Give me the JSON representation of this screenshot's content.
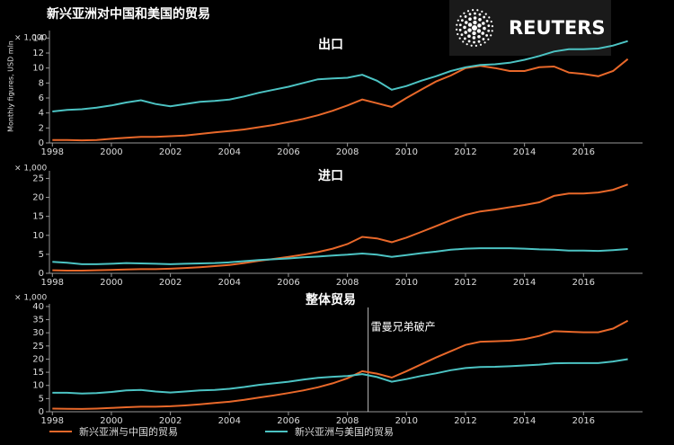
{
  "title": "新兴亚洲对中国和美国的贸易",
  "logo": "REUTERS",
  "chart_data": [
    {
      "type": "line",
      "title": "出口",
      "multiplier": "× 1,000",
      "ylabel": "Monthly figures, USD mln",
      "x": [
        1998,
        1998.5,
        1999,
        1999.5,
        2000,
        2000.5,
        2001,
        2001.5,
        2002,
        2002.5,
        2003,
        2003.5,
        2004,
        2004.5,
        2005,
        2005.5,
        2006,
        2006.5,
        2007,
        2007.5,
        2008,
        2008.5,
        2009,
        2009.5,
        2010,
        2010.5,
        2011,
        2011.5,
        2012,
        2012.5,
        2013,
        2013.5,
        2014,
        2014.5,
        2015,
        2015.5,
        2016,
        2016.5,
        2017,
        2017.5
      ],
      "xlim": [
        1997.9,
        2018
      ],
      "xticks": [
        1998,
        2000,
        2002,
        2004,
        2006,
        2008,
        2010,
        2012,
        2014,
        2016
      ],
      "ylim": [
        0,
        15
      ],
      "yticks": [
        0,
        2,
        4,
        6,
        8,
        10,
        12,
        14
      ],
      "series": [
        {
          "color": "#e8682a",
          "values": [
            0.4,
            0.4,
            0.35,
            0.4,
            0.55,
            0.7,
            0.8,
            0.8,
            0.9,
            1.0,
            1.2,
            1.4,
            1.6,
            1.8,
            2.1,
            2.4,
            2.8,
            3.2,
            3.7,
            4.3,
            5.0,
            5.8,
            5.3,
            4.8,
            6.0,
            7.1,
            8.2,
            9.0,
            10.0,
            10.3,
            10.0,
            9.6,
            9.6,
            10.1,
            10.2,
            9.4,
            9.2,
            8.9,
            9.6,
            11.2
          ]
        },
        {
          "color": "#4cc3c3",
          "values": [
            4.2,
            4.4,
            4.5,
            4.7,
            5.0,
            5.4,
            5.7,
            5.2,
            4.9,
            5.2,
            5.5,
            5.6,
            5.8,
            6.2,
            6.7,
            7.1,
            7.5,
            8.0,
            8.5,
            8.6,
            8.7,
            9.1,
            8.3,
            7.1,
            7.6,
            8.3,
            8.9,
            9.6,
            10.1,
            10.4,
            10.5,
            10.7,
            11.1,
            11.6,
            12.2,
            12.5,
            12.5,
            12.6,
            13.0,
            13.6
          ]
        }
      ]
    },
    {
      "type": "line",
      "title": "进口",
      "multiplier": "× 1,000",
      "x": [
        1998,
        1998.5,
        1999,
        1999.5,
        2000,
        2000.5,
        2001,
        2001.5,
        2002,
        2002.5,
        2003,
        2003.5,
        2004,
        2004.5,
        2005,
        2005.5,
        2006,
        2006.5,
        2007,
        2007.5,
        2008,
        2008.5,
        2009,
        2009.5,
        2010,
        2010.5,
        2011,
        2011.5,
        2012,
        2012.5,
        2013,
        2013.5,
        2014,
        2014.5,
        2015,
        2015.5,
        2016,
        2016.5,
        2017,
        2017.5
      ],
      "xlim": [
        1997.9,
        2018
      ],
      "xticks": [
        1998,
        2000,
        2002,
        2004,
        2006,
        2008,
        2010,
        2012,
        2014,
        2016
      ],
      "ylim": [
        0,
        27
      ],
      "yticks": [
        0,
        5,
        10,
        15,
        20,
        25
      ],
      "series": [
        {
          "color": "#e8682a",
          "values": [
            0.8,
            0.7,
            0.7,
            0.8,
            0.9,
            1.0,
            1.1,
            1.1,
            1.2,
            1.4,
            1.6,
            1.9,
            2.2,
            2.7,
            3.3,
            3.8,
            4.3,
            4.9,
            5.6,
            6.5,
            7.7,
            9.6,
            9.2,
            8.2,
            9.4,
            10.9,
            12.4,
            14.0,
            15.4,
            16.3,
            16.8,
            17.4,
            18.0,
            18.7,
            20.4,
            21.0,
            21.0,
            21.3,
            22.0,
            23.4
          ]
        },
        {
          "color": "#4cc3c3",
          "values": [
            3.0,
            2.8,
            2.4,
            2.4,
            2.5,
            2.7,
            2.6,
            2.5,
            2.4,
            2.5,
            2.6,
            2.7,
            2.9,
            3.2,
            3.5,
            3.7,
            3.9,
            4.2,
            4.4,
            4.7,
            4.9,
            5.2,
            4.9,
            4.3,
            4.8,
            5.3,
            5.7,
            6.2,
            6.5,
            6.6,
            6.6,
            6.6,
            6.5,
            6.3,
            6.2,
            6.0,
            6.0,
            5.9,
            6.1,
            6.4
          ]
        }
      ]
    },
    {
      "type": "line",
      "title": "整体贸易",
      "multiplier": "× 1,000",
      "annotation": {
        "text": "雷曼兄弟破产",
        "x": 2008.7
      },
      "x": [
        1998,
        1998.5,
        1999,
        1999.5,
        2000,
        2000.5,
        2001,
        2001.5,
        2002,
        2002.5,
        2003,
        2003.5,
        2004,
        2004.5,
        2005,
        2005.5,
        2006,
        2006.5,
        2007,
        2007.5,
        2008,
        2008.5,
        2009,
        2009.5,
        2010,
        2010.5,
        2011,
        2011.5,
        2012,
        2012.5,
        2013,
        2013.5,
        2014,
        2014.5,
        2015,
        2015.5,
        2016,
        2016.5,
        2017,
        2017.5
      ],
      "xlim": [
        1997.9,
        2018
      ],
      "xticks": [
        1998,
        2000,
        2002,
        2004,
        2006,
        2008,
        2010,
        2012,
        2014,
        2016
      ],
      "ylim": [
        0,
        41
      ],
      "yticks": [
        0,
        5,
        10,
        15,
        20,
        25,
        30,
        35,
        40
      ],
      "series": [
        {
          "name": "新兴亚洲与中国的贸易",
          "color": "#e8682a",
          "values": [
            1.2,
            1.1,
            1.05,
            1.2,
            1.45,
            1.7,
            1.9,
            1.9,
            2.1,
            2.4,
            2.8,
            3.3,
            3.8,
            4.5,
            5.4,
            6.2,
            7.1,
            8.1,
            9.3,
            10.8,
            12.7,
            15.4,
            14.5,
            13.0,
            15.4,
            18.0,
            20.6,
            23.0,
            25.4,
            26.6,
            26.8,
            27.0,
            27.6,
            28.8,
            30.6,
            30.4,
            30.2,
            30.2,
            31.6,
            34.6
          ]
        },
        {
          "name": "新兴亚洲与美国的贸易",
          "color": "#4cc3c3",
          "values": [
            7.2,
            7.2,
            6.9,
            7.1,
            7.5,
            8.1,
            8.3,
            7.7,
            7.3,
            7.7,
            8.1,
            8.3,
            8.7,
            9.4,
            10.2,
            10.8,
            11.4,
            12.2,
            12.9,
            13.3,
            13.6,
            14.3,
            13.2,
            11.4,
            12.4,
            13.6,
            14.6,
            15.8,
            16.6,
            17.0,
            17.1,
            17.3,
            17.6,
            17.9,
            18.4,
            18.5,
            18.5,
            18.5,
            19.1,
            20.0
          ]
        }
      ]
    }
  ]
}
